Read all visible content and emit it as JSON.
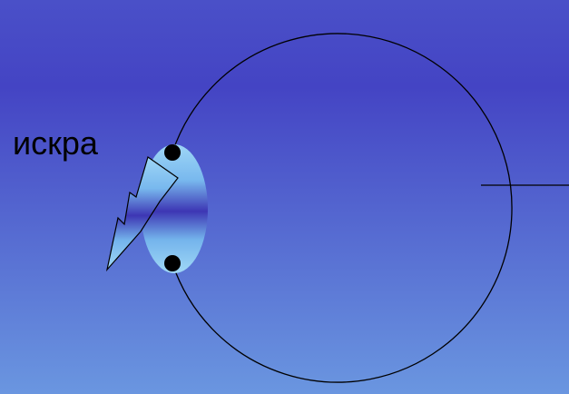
{
  "label": "искра",
  "colors": {
    "background_top": "#4a50c8",
    "background_band": "#4444c4",
    "background_bottom": "#6a96e0",
    "outline": "#000000",
    "lens_light": "#9ed6f6",
    "lens_dark": "#3d36b4"
  },
  "icons": {
    "spark": "lightning-bolt-icon"
  }
}
